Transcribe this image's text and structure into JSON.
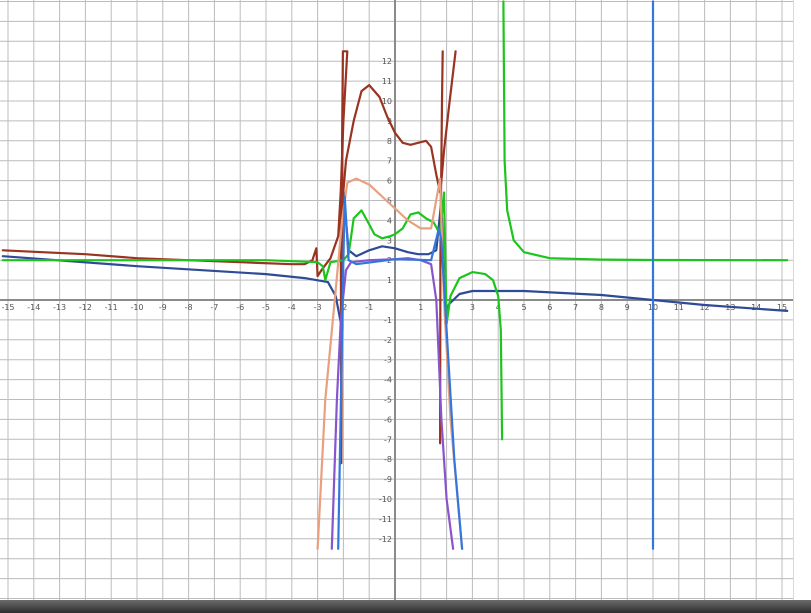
{
  "chart_data": {
    "type": "line",
    "title": "",
    "xlabel": "",
    "ylabel": "",
    "xlim": [
      -15.2,
      15.2
    ],
    "ylim": [
      -12,
      12
    ],
    "grid": true,
    "x_ticks": [
      -15,
      -14,
      -13,
      -12,
      -11,
      -10,
      -9,
      -8,
      -7,
      -6,
      -5,
      -4,
      -3,
      -2,
      -1,
      1,
      2,
      3,
      4,
      5,
      6,
      7,
      8,
      9,
      10,
      11,
      12,
      13,
      14,
      15
    ],
    "y_ticks": [
      -12,
      -11,
      -10,
      -9,
      -8,
      -7,
      -6,
      -5,
      -4,
      -3,
      -2,
      -1,
      1,
      2,
      3,
      4,
      5,
      6,
      7,
      8,
      9,
      10,
      11,
      12
    ],
    "series": [
      {
        "color": "#2f4a96",
        "points": [
          [
            -15.2,
            2.2
          ],
          [
            -10,
            1.7
          ],
          [
            -5,
            1.3
          ],
          [
            -3.5,
            1.1
          ],
          [
            -2.6,
            0.9
          ],
          [
            -2.3,
            0.2
          ],
          [
            -2.15,
            -0.8
          ],
          [
            -2.05,
            -1.5
          ],
          [
            -2.0,
            5.5
          ],
          [
            -1.8,
            2.5
          ],
          [
            -1.5,
            2.2
          ],
          [
            -1,
            2.5
          ],
          [
            -0.5,
            2.7
          ],
          [
            0,
            2.6
          ],
          [
            0.5,
            2.4
          ],
          [
            0.9,
            2.3
          ],
          [
            1.3,
            2.3
          ],
          [
            1.6,
            2.5
          ],
          [
            1.8,
            5
          ],
          [
            1.95,
            -1.2
          ],
          [
            2.1,
            -0.2
          ],
          [
            2.5,
            0.3
          ],
          [
            3,
            0.45
          ],
          [
            5,
            0.45
          ],
          [
            8,
            0.25
          ],
          [
            10,
            0
          ],
          [
            12,
            -0.25
          ],
          [
            15.2,
            -0.55
          ]
        ]
      },
      {
        "color": "#993322",
        "points": [
          [
            -15.2,
            2.5
          ],
          [
            -12,
            2.3
          ],
          [
            -10,
            2.1
          ],
          [
            -6,
            1.9
          ],
          [
            -4,
            1.8
          ],
          [
            -3.5,
            1.8
          ],
          [
            -3.2,
            2.0
          ],
          [
            -3.05,
            2.6
          ],
          [
            -3.0,
            1.2
          ],
          [
            -2.85,
            1.5
          ],
          [
            -2.5,
            2.1
          ],
          [
            -2.2,
            3.2
          ],
          [
            -2.1,
            5.5
          ],
          [
            -2.0,
            9
          ],
          [
            -1.85,
            12.5
          ],
          [
            -2.02,
            12.5
          ],
          [
            -2.05,
            8
          ],
          [
            -2.05,
            4
          ],
          [
            -2.08,
            -8.2
          ],
          [
            -2.1,
            4
          ],
          [
            -1.9,
            7
          ],
          [
            -1.6,
            9
          ],
          [
            -1.3,
            10.5
          ],
          [
            -1.0,
            10.8
          ],
          [
            -0.6,
            10.2
          ],
          [
            -0.3,
            9.2
          ],
          [
            0,
            8.4
          ],
          [
            0.3,
            7.9
          ],
          [
            0.6,
            7.8
          ],
          [
            0.9,
            7.9
          ],
          [
            1.2,
            8.0
          ],
          [
            1.4,
            7.7
          ],
          [
            1.6,
            6.3
          ],
          [
            1.75,
            5.4
          ],
          [
            1.8,
            6
          ],
          [
            1.9,
            7.5
          ],
          [
            2.1,
            9.8
          ],
          [
            2.35,
            12.5
          ]
        ]
      },
      {
        "color": "#993322",
        "points": [
          [
            1.85,
            12.5
          ],
          [
            1.82,
            10
          ],
          [
            1.8,
            7
          ],
          [
            1.78,
            5
          ],
          [
            1.76,
            2
          ],
          [
            1.75,
            -7.2
          ]
        ]
      },
      {
        "color": "#1ec41e",
        "points": [
          [
            -15.2,
            2
          ],
          [
            -5,
            2
          ],
          [
            -3,
            1.9
          ],
          [
            -2.8,
            1.7
          ],
          [
            -2.7,
            1.0
          ],
          [
            -2.5,
            1.9
          ],
          [
            -2,
            2
          ],
          [
            -1.8,
            2.3
          ],
          [
            -1.6,
            4.1
          ],
          [
            -1.3,
            4.5
          ],
          [
            -1,
            3.8
          ],
          [
            -0.8,
            3.3
          ],
          [
            -0.5,
            3.1
          ],
          [
            -0.2,
            3.2
          ],
          [
            0,
            3.3
          ],
          [
            0.3,
            3.6
          ],
          [
            0.6,
            4.3
          ],
          [
            0.9,
            4.4
          ],
          [
            1.2,
            4.1
          ],
          [
            1.5,
            3.9
          ],
          [
            1.75,
            3.3
          ],
          [
            1.9,
            5.4
          ],
          [
            2.0,
            -1.2
          ],
          [
            2.15,
            0.2
          ],
          [
            2.5,
            1.1
          ],
          [
            3,
            1.4
          ],
          [
            3.5,
            1.3
          ],
          [
            3.8,
            1.0
          ],
          [
            4.0,
            0.2
          ],
          [
            4.1,
            -1.5
          ],
          [
            4.15,
            -7
          ]
        ]
      },
      {
        "color": "#1ec41e",
        "points": [
          [
            4.2,
            15
          ],
          [
            4.25,
            7
          ],
          [
            4.35,
            4.5
          ],
          [
            4.6,
            3
          ],
          [
            5,
            2.4
          ],
          [
            6,
            2.1
          ],
          [
            8,
            2.03
          ],
          [
            10,
            2.01
          ],
          [
            15.2,
            2
          ]
        ]
      },
      {
        "color": "#e8a080",
        "points": [
          [
            -3.0,
            -12.5
          ],
          [
            -2.7,
            -5
          ],
          [
            -2.3,
            0.5
          ],
          [
            -2.05,
            4
          ],
          [
            -1.85,
            5.9
          ],
          [
            -1.5,
            6.1
          ],
          [
            -1,
            5.8
          ],
          [
            -0.5,
            5.2
          ],
          [
            0,
            4.6
          ],
          [
            0.5,
            4
          ],
          [
            1.0,
            3.6
          ],
          [
            1.4,
            3.6
          ],
          [
            1.75,
            6.1
          ],
          [
            1.9,
            0
          ],
          [
            2.15,
            -6
          ],
          [
            2.6,
            -12.5
          ]
        ]
      },
      {
        "color": "#8855cc",
        "points": [
          [
            -2.45,
            -12.5
          ],
          [
            -2.25,
            -5
          ],
          [
            -2.1,
            -1
          ],
          [
            -1.9,
            1.5
          ],
          [
            -1.7,
            1.9
          ],
          [
            -1,
            2.0
          ],
          [
            0,
            2.05
          ],
          [
            0.5,
            2.1
          ],
          [
            1,
            2.0
          ],
          [
            1.4,
            1.8
          ],
          [
            1.6,
            0
          ],
          [
            1.8,
            -6
          ],
          [
            2.0,
            -10
          ],
          [
            2.25,
            -12.5
          ]
        ]
      },
      {
        "color": "#3377dd",
        "points": [
          [
            -2.2,
            -12.5
          ],
          [
            -2.08,
            -4
          ],
          [
            -2.0,
            2
          ],
          [
            -1.95,
            5.2
          ],
          [
            -1.8,
            2
          ],
          [
            -1.5,
            1.8
          ],
          [
            0,
            2.05
          ],
          [
            1.4,
            2
          ],
          [
            1.7,
            3.6
          ],
          [
            1.8,
            3
          ],
          [
            2.0,
            -1.5
          ],
          [
            2.3,
            -8
          ],
          [
            2.6,
            -12.5
          ]
        ]
      },
      {
        "color": "#3377dd",
        "points": [
          [
            10,
            -12.5
          ],
          [
            10,
            15
          ]
        ]
      }
    ]
  }
}
